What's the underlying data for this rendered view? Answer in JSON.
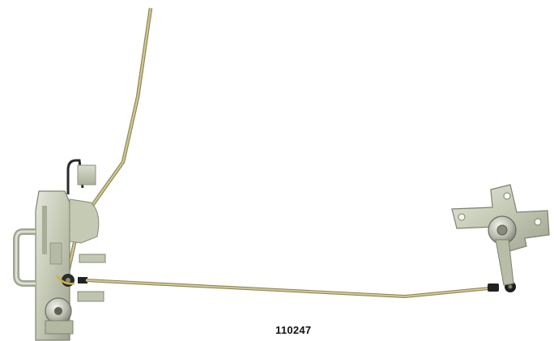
{
  "image": {
    "part_number": "110247"
  },
  "colors": {
    "background": "#ffffff",
    "rod": "#b6ad78",
    "rod_shadow": "#8f875a",
    "zinc_plate": "#c9cdb8",
    "zinc_edge": "#8e927d",
    "rubber": "#222222",
    "label_text": "#111111"
  }
}
